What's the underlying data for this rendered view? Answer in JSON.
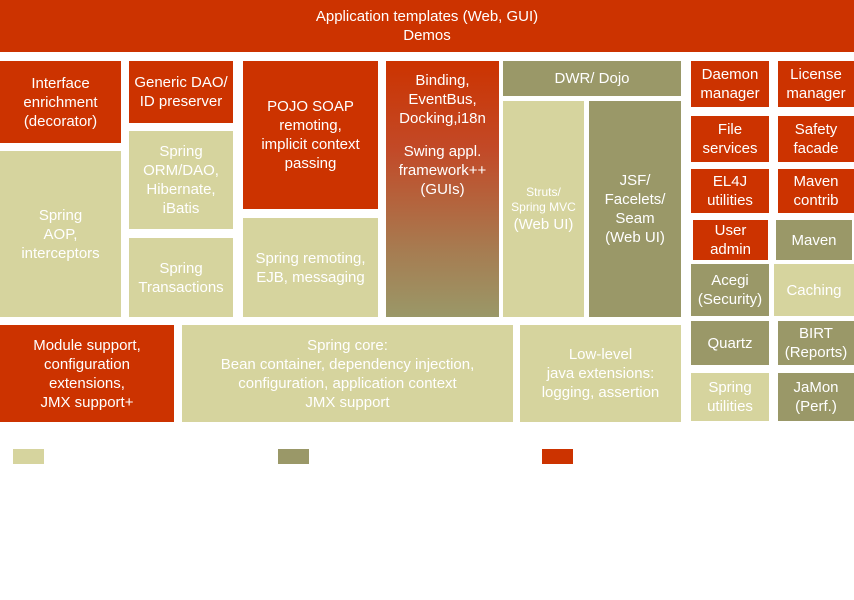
{
  "colors": {
    "red": "#cc3300",
    "light_olive": "#d6d49e",
    "dark_olive": "#9a9868"
  },
  "boxes": {
    "app_templates": [
      "Application templates (Web, GUI)",
      "Demos"
    ],
    "interface_enrich": [
      "Interface",
      "enrichment",
      "(decorator)"
    ],
    "spring_aop": [
      "Spring",
      "AOP,",
      "interceptors"
    ],
    "generic_dao": [
      "Generic DAO/",
      "ID preserver"
    ],
    "spring_orm": [
      "Spring",
      "ORM/DAO,",
      "Hibernate,",
      "iBatis"
    ],
    "spring_tx": [
      "Spring",
      "Transactions"
    ],
    "pojo_soap": [
      "POJO SOAP",
      "remoting,",
      "implicit context",
      "passing"
    ],
    "spring_remoting": [
      "Spring remoting,",
      "EJB, messaging"
    ],
    "binding": [
      "Binding,",
      "EventBus,",
      "Docking,i18n"
    ],
    "swing": [
      "Swing appl.",
      "framework++",
      "(GUIs)"
    ],
    "dwr": [
      "DWR/ Dojo"
    ],
    "struts": [
      "Struts/",
      "Spring  MVC"
    ],
    "struts_webui": [
      "(Web UI)"
    ],
    "jsf": [
      "JSF/",
      "Facelets/",
      "Seam",
      "(Web UI)"
    ],
    "daemon": [
      "Daemon",
      "manager"
    ],
    "license": [
      "License",
      "manager"
    ],
    "file_services": [
      "File",
      "services"
    ],
    "safety": [
      "Safety",
      "facade"
    ],
    "el4j": [
      "EL4J",
      "utilities"
    ],
    "maven_contrib": [
      "Maven",
      "contrib"
    ],
    "user_admin": [
      "User",
      "admin"
    ],
    "maven": [
      "Maven"
    ],
    "acegi": [
      "Acegi",
      "(Security)"
    ],
    "caching": [
      "Caching"
    ],
    "quartz": [
      "Quartz"
    ],
    "birt": [
      "BIRT",
      "(Reports)"
    ],
    "spring_utils": [
      "Spring",
      "utilities"
    ],
    "jamon": [
      "JaMon",
      "(Perf.)"
    ],
    "module_support": [
      "Module support,",
      "configuration",
      "extensions,",
      "JMX support+"
    ],
    "spring_core": [
      "Spring core:",
      "Bean container, dependency injection,",
      "configuration, application context",
      "JMX support"
    ],
    "low_level": [
      "Low-level",
      "java extensions:",
      "logging, assertion"
    ]
  }
}
